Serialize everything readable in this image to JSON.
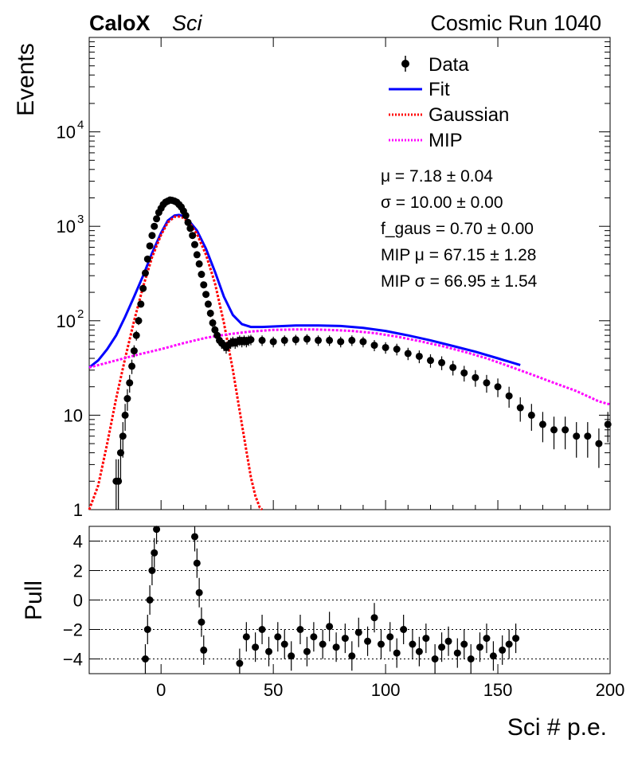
{
  "header": {
    "brand": "CaloX",
    "brand_sub": "Sci",
    "run_label": "Cosmic Run 1040"
  },
  "fit_params": [
    "μ = 7.18 ± 0.04",
    "σ = 10.00 ± 0.00",
    "f_gaus = 0.70 ± 0.00",
    "MIP μ = 67.15 ± 1.28",
    "MIP σ = 66.95 ± 1.54"
  ],
  "colors": {
    "data": "#000000",
    "fit": "#0000ff",
    "gaussian": "#ff0000",
    "mip": "#ff00ff",
    "grid": "#000000"
  },
  "chart_data": [
    {
      "type": "scatter",
      "panel": "main",
      "xlabel": "",
      "ylabel": "Events",
      "xlim": [
        -32,
        200
      ],
      "ylim": [
        1,
        100000
      ],
      "y_scale": "log",
      "x_ticks": [
        0,
        50,
        100,
        150,
        200
      ],
      "y_ticks": [
        {
          "value": 1,
          "label": "1"
        },
        {
          "value": 10,
          "label": "10"
        },
        {
          "value": 100,
          "label": "10",
          "exp": "2"
        },
        {
          "value": 1000,
          "label": "10",
          "exp": "3"
        },
        {
          "value": 10000,
          "label": "10",
          "exp": "4"
        }
      ],
      "legend_position": "top-right",
      "legend": [
        {
          "label": "Data",
          "style": "marker"
        },
        {
          "label": "Fit",
          "style": "solid"
        },
        {
          "label": "Gaussian",
          "style": "dotted"
        },
        {
          "label": "MIP",
          "style": "dotted"
        }
      ],
      "series": [
        {
          "name": "Data",
          "kind": "points",
          "x": [
            -20,
            -19,
            -18,
            -17,
            -16,
            -15,
            -14,
            -13,
            -12,
            -11,
            -10,
            -9,
            -8,
            -7,
            -6,
            -5,
            -4,
            -3,
            -2,
            -1,
            0,
            1,
            2,
            3,
            4,
            5,
            6,
            7,
            8,
            9,
            10,
            11,
            12,
            13,
            14,
            15,
            16,
            17,
            18,
            19,
            20,
            21,
            22,
            23,
            24,
            25,
            26,
            27,
            28,
            29,
            30,
            31,
            32,
            33,
            34,
            35,
            36,
            37,
            38,
            39,
            40,
            45,
            50,
            55,
            60,
            65,
            70,
            75,
            80,
            85,
            90,
            95,
            100,
            105,
            110,
            115,
            120,
            125,
            130,
            135,
            140,
            145,
            150,
            155,
            160,
            165,
            170,
            175,
            180,
            185,
            190,
            195,
            199
          ],
          "y": [
            2,
            2,
            4,
            6,
            10,
            15,
            22,
            33,
            48,
            70,
            100,
            150,
            220,
            320,
            450,
            620,
            800,
            1000,
            1200,
            1400,
            1550,
            1700,
            1800,
            1850,
            1900,
            1880,
            1850,
            1800,
            1700,
            1600,
            1450,
            1300,
            1100,
            950,
            800,
            640,
            500,
            400,
            310,
            240,
            190,
            150,
            120,
            95,
            80,
            70,
            62,
            58,
            55,
            52,
            55,
            58,
            60,
            58,
            60,
            62,
            60,
            62,
            60,
            62,
            63,
            62,
            60,
            62,
            63,
            64,
            62,
            62,
            60,
            62,
            60,
            55,
            52,
            50,
            45,
            42,
            38,
            36,
            32,
            28,
            25,
            22,
            20,
            16,
            12,
            10,
            8,
            7,
            7,
            6,
            6,
            5,
            8
          ]
        },
        {
          "name": "Fit",
          "kind": "line",
          "x": [
            -32,
            -28,
            -24,
            -20,
            -16,
            -12,
            -8,
            -4,
            0,
            3,
            6,
            8,
            10,
            13,
            16,
            20,
            24,
            28,
            32,
            36,
            40,
            45,
            50,
            60,
            70,
            80,
            90,
            100,
            110,
            120,
            130,
            140,
            150,
            160
          ],
          "y": [
            32,
            38,
            50,
            70,
            110,
            180,
            300,
            520,
            850,
            1150,
            1300,
            1320,
            1280,
            1100,
            900,
            580,
            330,
            180,
            115,
            92,
            86,
            86,
            87,
            89,
            89,
            88,
            84,
            78,
            70,
            62,
            54,
            47,
            40,
            34
          ]
        },
        {
          "name": "Gaussian",
          "kind": "line",
          "x": [
            -32,
            -28,
            -24,
            -20,
            -16,
            -12,
            -8,
            -4,
            0,
            3,
            6,
            8,
            10,
            13,
            16,
            20,
            24,
            28,
            32,
            36,
            40,
            42,
            44,
            45
          ],
          "y": [
            1,
            1.8,
            5,
            15,
            40,
            100,
            230,
            470,
            810,
            1100,
            1260,
            1270,
            1230,
            1060,
            830,
            500,
            250,
            95,
            30,
            8,
            2.2,
            1.4,
            1.05,
            1
          ]
        },
        {
          "name": "MIP",
          "kind": "line",
          "x": [
            -32,
            -20,
            -10,
            0,
            10,
            20,
            30,
            40,
            50,
            60,
            67,
            75,
            85,
            95,
            105,
            115,
            125,
            135,
            145,
            155,
            165,
            175,
            185,
            195,
            200
          ],
          "y": [
            32,
            38,
            44,
            50,
            58,
            66,
            72,
            77,
            80,
            81,
            81,
            80,
            78,
            74,
            68,
            61,
            54,
            47,
            40,
            33,
            27,
            22,
            18,
            14,
            13
          ]
        }
      ]
    },
    {
      "type": "scatter",
      "panel": "pull",
      "xlabel": "Sci # p.e.",
      "ylabel": "Pull",
      "xlim": [
        -32,
        200
      ],
      "ylim": [
        -5,
        5
      ],
      "x_ticks": [
        0,
        50,
        100,
        150,
        200
      ],
      "y_ticks": [
        -4,
        -2,
        0,
        2,
        4
      ],
      "grid_y": [
        -4,
        -2,
        0,
        2,
        4
      ],
      "series": [
        {
          "name": "Pull",
          "x": [
            -7,
            -6,
            -5,
            -4,
            -3,
            -2,
            15,
            16,
            17,
            18,
            19,
            35,
            38,
            42,
            45,
            48,
            52,
            55,
            58,
            62,
            65,
            68,
            72,
            75,
            78,
            82,
            85,
            88,
            92,
            95,
            98,
            102,
            105,
            108,
            112,
            115,
            118,
            122,
            125,
            128,
            132,
            135,
            138,
            142,
            145,
            148,
            152,
            155,
            158
          ],
          "y": [
            -4,
            -2,
            0,
            2,
            3.2,
            4.8,
            4.3,
            2.5,
            0.5,
            -1.5,
            -3.4,
            -4.3,
            -2.5,
            -3.2,
            -2.0,
            -3.5,
            -2.5,
            -3.0,
            -3.8,
            -2.0,
            -3.5,
            -2.5,
            -3.0,
            -1.8,
            -3.2,
            -2.6,
            -3.8,
            -2.2,
            -2.8,
            -1.2,
            -3.0,
            -2.5,
            -3.6,
            -2.0,
            -3.0,
            -3.5,
            -2.6,
            -4.0,
            -3.2,
            -2.8,
            -3.6,
            -3.0,
            -4.0,
            -3.2,
            -2.6,
            -3.8,
            -3.4,
            -3.0,
            -2.6
          ]
        }
      ]
    }
  ]
}
